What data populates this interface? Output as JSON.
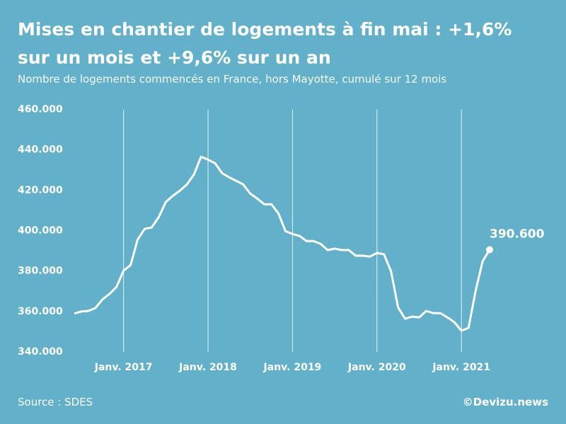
{
  "chart_data": {
    "type": "line",
    "title": "Mises en chantier de logements à fin mai : +1,6% sur un mois et +9,6% sur un an",
    "subtitle": "Nombre de logements commencés en France, hors Mayotte, cumulé sur 12 mois",
    "source": "Source : SDES",
    "credit": "©Devizu.news",
    "color": "#ffffff",
    "x": [
      "2016-06",
      "2016-07",
      "2016-08",
      "2016-09",
      "2016-10",
      "2016-11",
      "2016-12",
      "2017-01",
      "2017-02",
      "2017-03",
      "2017-04",
      "2017-05",
      "2017-06",
      "2017-07",
      "2017-08",
      "2017-09",
      "2017-10",
      "2017-11",
      "2017-12",
      "2018-01",
      "2018-02",
      "2018-03",
      "2018-04",
      "2018-05",
      "2018-06",
      "2018-07",
      "2018-08",
      "2018-09",
      "2018-10",
      "2018-11",
      "2018-12",
      "2019-01",
      "2019-02",
      "2019-03",
      "2019-04",
      "2019-05",
      "2019-06",
      "2019-07",
      "2019-08",
      "2019-09",
      "2019-10",
      "2019-11",
      "2019-12",
      "2020-01",
      "2020-02",
      "2020-03",
      "2020-04",
      "2020-05",
      "2020-06",
      "2020-07",
      "2020-08",
      "2020-09",
      "2020-10",
      "2020-11",
      "2020-12",
      "2021-01",
      "2021-02",
      "2021-03",
      "2021-04",
      "2021-05"
    ],
    "values": [
      359000,
      360000,
      360300,
      361700,
      366000,
      368700,
      372200,
      380200,
      383000,
      395600,
      400900,
      401600,
      406800,
      414200,
      417300,
      419800,
      422900,
      427800,
      436600,
      435200,
      433400,
      428500,
      426400,
      424700,
      422900,
      418400,
      415900,
      413100,
      413100,
      408600,
      399800,
      398400,
      397400,
      394900,
      394900,
      393500,
      390400,
      391100,
      390400,
      390400,
      387600,
      387600,
      387200,
      389000,
      388300,
      379900,
      362000,
      356400,
      357500,
      357100,
      360300,
      359200,
      359200,
      357100,
      354700,
      350500,
      351900,
      370000,
      384800,
      390600
    ],
    "value_labels": [
      null,
      null,
      null,
      null,
      null,
      null,
      null,
      null,
      null,
      null,
      null,
      null,
      null,
      null,
      null,
      null,
      null,
      null,
      null,
      null,
      null,
      null,
      null,
      null,
      null,
      null,
      null,
      null,
      null,
      null,
      null,
      null,
      null,
      null,
      null,
      null,
      null,
      null,
      null,
      null,
      null,
      null,
      null,
      null,
      null,
      null,
      null,
      null,
      null,
      null,
      null,
      null,
      null,
      null,
      null,
      null,
      null,
      null,
      null,
      "390.600"
    ],
    "xlim": [
      "2016-06",
      "2021-05"
    ],
    "xticks": [
      {
        "value": "2017-01",
        "label": "Janv. 2017"
      },
      {
        "value": "2018-01",
        "label": "Janv. 2018"
      },
      {
        "value": "2019-01",
        "label": "Janv. 2019"
      },
      {
        "value": "2020-01",
        "label": "Janv. 2020"
      },
      {
        "value": "2021-01",
        "label": "Janv. 2021"
      }
    ],
    "ylim": [
      340000,
      460000
    ],
    "yticks": [
      {
        "value": 340000,
        "label": "340.000"
      },
      {
        "value": 360000,
        "label": "360.000"
      },
      {
        "value": 380000,
        "label": "380.000"
      },
      {
        "value": 400000,
        "label": "400.000"
      },
      {
        "value": 420000,
        "label": "420.000"
      },
      {
        "value": 440000,
        "label": "440.000"
      },
      {
        "value": 460000,
        "label": "460.000"
      }
    ],
    "grid": true
  }
}
